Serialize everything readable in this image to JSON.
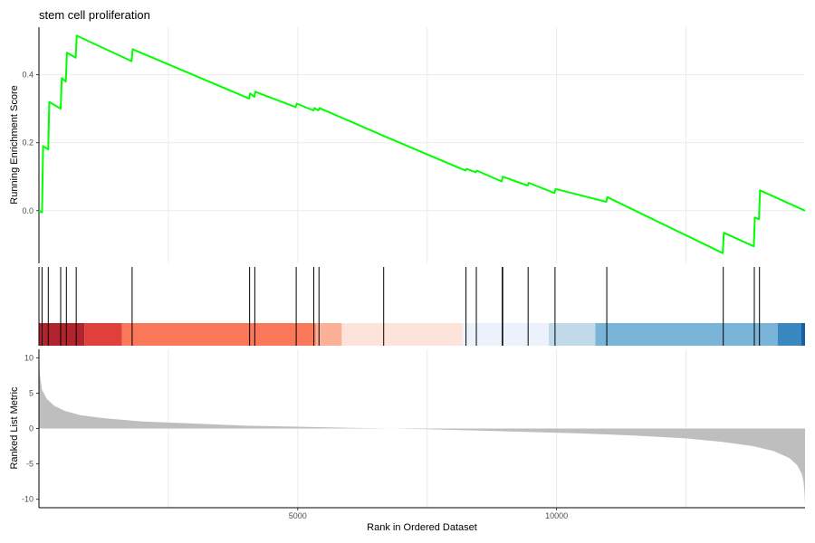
{
  "chart_data": [
    {
      "panel": "running-enrichment-score",
      "type": "line",
      "title": "stem cell proliferation",
      "ylabel": "Running Enrichment Score",
      "xlabel": "",
      "xlim": [
        0,
        14800
      ],
      "ylim": [
        -0.155,
        0.54
      ],
      "yticks": [
        0.0,
        0.2,
        0.4
      ],
      "ytick_labels": [
        "0.0",
        "0.2",
        "0.4"
      ],
      "grid_x": [
        2500,
        5000,
        7500,
        10000,
        12500
      ],
      "line_color": "#00ff00",
      "series": [
        {
          "x": [
            0,
            60,
            80,
            180,
            200,
            420,
            440,
            520,
            540,
            710,
            730,
            1790,
            1810,
            4060,
            4080,
            4160,
            4180,
            4960,
            4980,
            5300,
            5320,
            5400,
            5420,
            6660,
            8240,
            8260,
            8440,
            8460,
            8940,
            8960,
            9440,
            9460,
            9960,
            9980,
            10960,
            10980,
            13210,
            13230,
            13810,
            13830,
            13910,
            13930,
            14800
          ],
          "y": [
            0.0,
            -0.005,
            0.19,
            0.18,
            0.32,
            0.3,
            0.39,
            0.38,
            0.465,
            0.45,
            0.515,
            0.44,
            0.475,
            0.33,
            0.345,
            0.335,
            0.35,
            0.305,
            0.315,
            0.295,
            0.302,
            0.295,
            0.302,
            0.22,
            0.118,
            0.123,
            0.113,
            0.118,
            0.086,
            0.1,
            0.074,
            0.082,
            0.052,
            0.064,
            0.026,
            0.04,
            -0.125,
            -0.065,
            -0.105,
            -0.02,
            -0.025,
            0.06,
            0.0
          ]
        }
      ]
    },
    {
      "panel": "gene-hits",
      "type": "rug",
      "hits": [
        0,
        60,
        180,
        420,
        530,
        720,
        1800,
        4070,
        4170,
        4970,
        5310,
        5410,
        6660,
        8250,
        8450,
        8950,
        8960,
        9450,
        9970,
        10970,
        13220,
        13820,
        13920
      ],
      "heat_bands": [
        {
          "from": 0,
          "to": 880,
          "color": "#b2242d"
        },
        {
          "from": 880,
          "to": 1600,
          "color": "#e0403b"
        },
        {
          "from": 1600,
          "to": 5350,
          "color": "#fb7759"
        },
        {
          "from": 5350,
          "to": 5850,
          "color": "#fcb097"
        },
        {
          "from": 5850,
          "to": 8180,
          "color": "#fde3d9"
        },
        {
          "from": 8180,
          "to": 9850,
          "color": "#ecf2fb"
        },
        {
          "from": 9850,
          "to": 10750,
          "color": "#c0dae9"
        },
        {
          "from": 10750,
          "to": 14270,
          "color": "#7bb4d9"
        },
        {
          "from": 14270,
          "to": 14730,
          "color": "#3a88c1"
        },
        {
          "from": 14730,
          "to": 14800,
          "color": "#1b5fa3"
        }
      ]
    },
    {
      "panel": "ranked-list-metric",
      "type": "area",
      "ylabel": "Ranked List Metric",
      "xlabel": "Rank in Ordered Dataset",
      "xlim": [
        0,
        14800
      ],
      "ylim": [
        -11.2,
        11.2
      ],
      "yticks": [
        10,
        5,
        0,
        -5,
        -10
      ],
      "ytick_labels": [
        "10",
        "5",
        "0",
        "-5",
        "-10"
      ],
      "xticks": [
        5000,
        10000
      ],
      "xtick_labels": [
        "5000",
        "10000"
      ],
      "fill_color": "#bebebe",
      "series": [
        {
          "x": [
            0,
            20,
            60,
            150,
            300,
            500,
            800,
            1200,
            2000,
            3000,
            4000,
            5000,
            6000,
            6800,
            7500,
            8500,
            9500,
            10500,
            11500,
            12500,
            13200,
            13800,
            14200,
            14500,
            14650,
            14740,
            14770,
            14790,
            14800
          ],
          "y": [
            9.5,
            7.5,
            5.5,
            4.2,
            3.2,
            2.5,
            1.9,
            1.5,
            1.0,
            0.7,
            0.4,
            0.25,
            0.1,
            0.0,
            -0.1,
            -0.3,
            -0.5,
            -0.7,
            -1.0,
            -1.4,
            -1.9,
            -2.5,
            -3.2,
            -4.2,
            -5.2,
            -6.5,
            -7.5,
            -9.0,
            -10.8
          ]
        }
      ]
    }
  ]
}
